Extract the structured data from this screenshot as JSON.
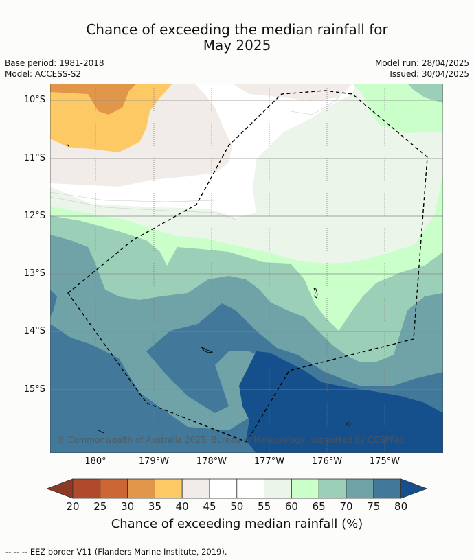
{
  "title": {
    "line1": "Chance of exceeding the median rainfall for",
    "line2": "May 2025"
  },
  "meta": {
    "base_period": "Base period: 1981-2018",
    "model": "Model: ACCESS-S2",
    "model_run": "Model run: 28/04/2025",
    "issued": "Issued: 30/04/2025"
  },
  "map": {
    "lat_labels": [
      "10°S",
      "11°S",
      "12°S",
      "13°S",
      "14°S",
      "15°S"
    ],
    "lon_labels": [
      "180°",
      "179°W",
      "178°W",
      "177°W",
      "176°W",
      "175°W"
    ],
    "copyright": "© Commonwealth of Australia 2025, Bureau of Meteorology, supported by COSPPac"
  },
  "colorbar": {
    "label": "Chance of exceeding median rainfall (%)",
    "ticks": [
      "20",
      "25",
      "30",
      "35",
      "40",
      "45",
      "50",
      "55",
      "60",
      "65",
      "70",
      "75",
      "80"
    ],
    "colors": {
      "below_20": "#8c3a25",
      "20_25": "#b14a2a",
      "25_30": "#cd6635",
      "30_35": "#e2964a",
      "35_40": "#fdc965",
      "40_45": "#f1ece7",
      "45_50": "#ffffff",
      "50_55": "#ffffff",
      "55_60": "#ebf5ea",
      "60_65": "#caffca",
      "65_70": "#9ccfb8",
      "70_75": "#6fa3a8",
      "75_80": "#42799a",
      "above_80": "#154f8c"
    }
  },
  "footer": {
    "legend": "--  --  -- EEZ border V11 (Flanders Marine Institute, 2019)."
  }
}
